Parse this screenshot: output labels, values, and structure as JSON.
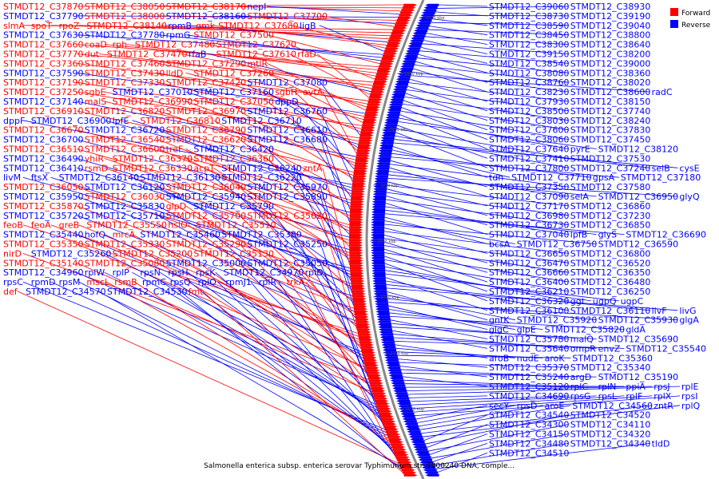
{
  "caption": "Salmonella enterica subsp. enterica serovar Typhimurium str. T000240 DNA, comple...",
  "legend": {
    "forward": {
      "label": "Forward",
      "color": "#ff0000"
    },
    "reverse": {
      "label": "Reverse",
      "color": "#0000ff"
    }
  },
  "ticks": [
    "4000 kbp",
    "3950 kbp",
    "3900 kbp",
    "3850 kbp",
    "3800 kbp",
    "3750 kbp",
    "3700 kbp",
    "3650 kbp",
    "3600 kbp"
  ],
  "colors": {
    "forward": "#ff0000",
    "reverse": "#0000ff",
    "backbone": "#888888"
  },
  "left_labels": [
    [
      "STMDT12_C37870",
      "f"
    ],
    [
      "STMDT12_C38050",
      "f"
    ],
    [
      "STMDT12_C38170",
      "f"
    ],
    [
      "nepI",
      "r"
    ],
    [
      "STMDT12_C37790",
      "r"
    ],
    [
      "STMDT12_C38000",
      "f"
    ],
    [
      "STMDT12_C38160",
      "r"
    ],
    [
      "STMDT12_C37700",
      "f"
    ],
    [
      "slmA",
      "f"
    ],
    [
      "spoT",
      "f"
    ],
    [
      "rpoZ",
      "f"
    ],
    [
      "STMDT12_C38140",
      "f"
    ],
    [
      "rpmB",
      "r"
    ],
    [
      "gmk",
      "f"
    ],
    [
      "STMDT12_C37680",
      "f"
    ],
    [
      "ligB",
      "r"
    ],
    [
      "STMDT12_C37630",
      "r"
    ],
    [
      "STMDT12_C37780",
      "r"
    ],
    [
      "rpmG",
      "r"
    ],
    [
      "STMDT12_C37500",
      "f"
    ],
    [
      "STMDT12_C37660",
      "f"
    ],
    [
      "coaD",
      "f"
    ],
    [
      "rph",
      "f"
    ],
    [
      "STMDT12_C37480",
      "f"
    ],
    [
      "STMDT12_C37620",
      "f"
    ],
    [
      "STMDT12_C37770",
      "f"
    ],
    [
      "dut",
      "f"
    ],
    [
      "STMDT12_C37470",
      "f"
    ],
    [
      "rfaB",
      "r"
    ],
    [
      "STMDT12_C37610",
      "f"
    ],
    [
      "rfaD",
      "f"
    ],
    [
      "STMDT12_C37360",
      "f"
    ],
    [
      "STMDT12_C37460",
      "f"
    ],
    [
      "STMDT12_C37290",
      "f"
    ],
    [
      "mtlR",
      "f"
    ],
    [
      "STMDT12_C37590",
      "r"
    ],
    [
      "STMDT12_C37430",
      "f"
    ],
    [
      "lldD",
      "f"
    ],
    [
      "STMDT12_C37260",
      "f"
    ],
    [
      "STMDT12_C37190",
      "f"
    ],
    [
      "STMDT12_C37330",
      "f"
    ],
    [
      "STMDT12_C37420",
      "f"
    ],
    [
      "STMDT12_C37080",
      "r"
    ],
    [
      "STMDT12_C37250",
      "f"
    ],
    [
      "sgbE",
      "f"
    ],
    [
      "STMDT12_C37010",
      "r"
    ],
    [
      "STMDT12_C37160",
      "r"
    ],
    [
      "sgbH",
      "f"
    ],
    [
      "avtA",
      "f"
    ],
    [
      "STMDT12_C37140",
      "r"
    ],
    [
      "malS",
      "f"
    ],
    [
      "STMDT12_C36990",
      "f"
    ],
    [
      "STMDT12_C37050",
      "f"
    ],
    [
      "dppD",
      "r"
    ],
    [
      "STMDT12_C36910",
      "f"
    ],
    [
      "STMDT12_C36820",
      "f"
    ],
    [
      "STMDT12_C36970",
      "f"
    ],
    [
      "STMDT12_C36760",
      "r"
    ],
    [
      "dppF",
      "r"
    ],
    [
      "STMDT12_C36900",
      "r"
    ],
    [
      "lpfE",
      "r"
    ],
    [
      "STMDT12_C36810",
      "f"
    ],
    [
      "STMDT12_C36710",
      "r"
    ],
    [
      "STMDT12_C36670",
      "f"
    ],
    [
      "STMDT12_C36720",
      "r"
    ],
    [
      "STMDT12_C36790",
      "f"
    ],
    [
      "STMDT12_C36610",
      "r"
    ],
    [
      "STMDT12_C36700",
      "r"
    ],
    [
      "STMDT12_C36540",
      "f"
    ],
    [
      "STMDT12_C36620",
      "f"
    ],
    [
      "STMDT12_C36680",
      "r"
    ],
    [
      "STMDT12_C36510",
      "f"
    ],
    [
      "STMDT12_C36600",
      "f"
    ],
    [
      "treF",
      "f"
    ],
    [
      "STMDT12_C36420",
      "r"
    ],
    [
      "STMDT12_C36490",
      "r"
    ],
    [
      "yhiR",
      "f"
    ],
    [
      "STMDT12_C36370",
      "f"
    ],
    [
      "STMDT12_C36360",
      "f"
    ],
    [
      "STMDT12_C36410",
      "r"
    ],
    [
      "rsmD",
      "f"
    ],
    [
      "STMDT12_C36330",
      "f"
    ],
    [
      "acpT",
      "f"
    ],
    [
      "STMDT12_C36240",
      "r"
    ],
    [
      "zntA",
      "f"
    ],
    [
      "livM",
      "r"
    ],
    [
      "ftsX",
      "r"
    ],
    [
      "STMDT12_C36140",
      "r"
    ],
    [
      "STMDT12_C36130",
      "r"
    ],
    [
      "STMDT12_C36220",
      "r"
    ],
    [
      "STMDT12_C36050",
      "f"
    ],
    [
      "STMDT12_C36120",
      "r"
    ],
    [
      "STMDT12_C36040",
      "f"
    ],
    [
      "STMDT12_C35970",
      "r"
    ],
    [
      "STMDT12_C35950",
      "r"
    ],
    [
      "STMDT12_C36030",
      "f"
    ],
    [
      "STMDT12_C35940",
      "r"
    ],
    [
      "STMDT12_C35890",
      "r"
    ],
    [
      "STMDT12_C35870",
      "f"
    ],
    [
      "STMDT12_C35830",
      "r"
    ],
    [
      "glpD",
      "f"
    ],
    [
      "STMDT12_C35790",
      "r"
    ],
    [
      "STMDT12_C35720",
      "r"
    ],
    [
      "STMDT12_C35710",
      "r"
    ],
    [
      "STMDT12_C35700",
      "f"
    ],
    [
      "STMDT12_C35620",
      "f"
    ],
    [
      "feoB",
      "f"
    ],
    [
      "feoA",
      "f"
    ],
    [
      "greB",
      "f"
    ],
    [
      "STMDT12_C35550",
      "f"
    ],
    [
      "hslO",
      "f"
    ],
    [
      "STMDT12_C35510",
      "f"
    ],
    [
      "STMDT12_C35440",
      "r"
    ],
    [
      "hofQ",
      "r"
    ],
    [
      "mrcA",
      "f"
    ],
    [
      "STMDT12_C35460",
      "r"
    ],
    [
      "STMDT12_C35380",
      "r"
    ],
    [
      "STMDT12_C35350",
      "f"
    ],
    [
      "STMDT12_C35330",
      "f"
    ],
    [
      "STMDT12_C35290",
      "f"
    ],
    [
      "STMDT12_C35250",
      "r"
    ],
    [
      "nirD",
      "f"
    ],
    [
      "STMDT12_C35260",
      "r"
    ],
    [
      "STMDT12_C35200",
      "f"
    ],
    [
      "STMDT12_C35130",
      "f"
    ],
    [
      "STMDT12_C35140",
      "f"
    ],
    [
      "STMDT12_C35080",
      "f"
    ],
    [
      "STMDT12_C35000",
      "r"
    ],
    [
      "STMDT12_C35050",
      "r"
    ],
    [
      "STMDT12_C34960",
      "r"
    ],
    [
      "rplW",
      "r"
    ],
    [
      "rplP",
      "r"
    ],
    [
      "rpsN",
      "r"
    ],
    [
      "rpsH",
      "r"
    ],
    [
      "rpsK",
      "r"
    ],
    [
      "STMDT12_C34970",
      "r"
    ],
    [
      "rplD",
      "r"
    ],
    [
      "rpsC",
      "r"
    ],
    [
      "rpmD",
      "r"
    ],
    [
      "rpsM",
      "r"
    ],
    [
      "mscL",
      "f"
    ],
    [
      "rsmB",
      "f"
    ],
    [
      "rpmC",
      "r"
    ],
    [
      "rpsQ",
      "r"
    ],
    [
      "rplO",
      "r"
    ],
    [
      "rpmJ1",
      "r"
    ],
    [
      "rplR",
      "r"
    ],
    [
      "trkA",
      "f"
    ],
    [
      "def",
      "f"
    ],
    [
      "STMDT12_C34570",
      "r"
    ],
    [
      "STMDT12_C34530",
      "r"
    ],
    [
      "fmt",
      "f"
    ]
  ],
  "right_labels": [
    [
      "STMDT12_C39060",
      "r"
    ],
    [
      "STMDT12_C38930",
      "r"
    ],
    [
      "STMDT12_C38730",
      "r"
    ],
    [
      "STMDT12_C39190",
      "r"
    ],
    [
      "STMDT12_C38590",
      "r"
    ],
    [
      "STMDT12_C39040",
      "r"
    ],
    [
      "STMDT12_C38450",
      "r"
    ],
    [
      "STMDT12_C38800",
      "r"
    ],
    [
      "STMDT12_C38300",
      "r"
    ],
    [
      "STMDT12_C38640",
      "r"
    ],
    [
      "STMDT12_C39150",
      "r"
    ],
    [
      "STMDT12_C38200",
      "r"
    ],
    [
      "STMDT12_C38540",
      "r"
    ],
    [
      "STMDT12_C39000",
      "r"
    ],
    [
      "STMDT12_C38080",
      "r"
    ],
    [
      "STMDT12_C38360",
      "r"
    ],
    [
      "STMDT12_C38760",
      "r"
    ],
    [
      "STMDT12_C38020",
      "r"
    ],
    [
      "STMDT12_C38230",
      "r"
    ],
    [
      "STMDT12_C38600",
      "r"
    ],
    [
      "radC",
      "r"
    ],
    [
      "STMDT12_C37930",
      "r"
    ],
    [
      "STMDT12_C38150",
      "r"
    ],
    [
      "STMDT12_C38500",
      "r"
    ],
    [
      "STMDT12_C37740",
      "r"
    ],
    [
      "STMDT12_C38030",
      "r"
    ],
    [
      "STMDT12_C38240",
      "r"
    ],
    [
      "STMDT12_C37600",
      "r"
    ],
    [
      "STMDT12_C37830",
      "r"
    ],
    [
      "STMDT12_C38060",
      "r"
    ],
    [
      "STMDT12_C37450",
      "r"
    ],
    [
      "STMDT12_C37640",
      "r"
    ],
    [
      "pyrE",
      "r"
    ],
    [
      "STMDT12_C38120",
      "r"
    ],
    [
      "STMDT12_C37410",
      "r"
    ],
    [
      "STMDT12_C37530",
      "r"
    ],
    [
      "STMDT12_C37800",
      "r"
    ],
    [
      "STMDT12_C37240",
      "r"
    ],
    [
      "selB",
      "r"
    ],
    [
      "cysE",
      "r"
    ],
    [
      "tdh",
      "r"
    ],
    [
      "STMDT12_C37710",
      "r"
    ],
    [
      "gpsA",
      "r"
    ],
    [
      "STMDT12_C37180",
      "r"
    ],
    [
      "STMDT12_C37350",
      "r"
    ],
    [
      "STMDT12_C37580",
      "r"
    ],
    [
      "STMDT12_C37090",
      "r"
    ],
    [
      "selA",
      "r"
    ],
    [
      "STMDT12_C36950",
      "r"
    ],
    [
      "glyQ",
      "r"
    ],
    [
      "STMDT12_C37170",
      "r"
    ],
    [
      "STMDT12_C36860",
      "r"
    ],
    [
      "STMDT12_C36980",
      "r"
    ],
    [
      "STMDT12_C37230",
      "r"
    ],
    [
      "STMDT12_C36730",
      "r"
    ],
    [
      "STMDT12_C36850",
      "r"
    ],
    [
      "STMDT12_C37040",
      "r"
    ],
    [
      "lpfB",
      "r"
    ],
    [
      "glyS",
      "r"
    ],
    [
      "STMDT12_C36690",
      "r"
    ],
    [
      "bcsA",
      "r"
    ],
    [
      "STMDT12_C36750",
      "r"
    ],
    [
      "STMDT12_C36590",
      "r"
    ],
    [
      "STMDT12_C36650",
      "r"
    ],
    [
      "STMDT12_C36800",
      "r"
    ],
    [
      "STMDT12_C36470",
      "r"
    ],
    [
      "STMDT12_C36520",
      "r"
    ],
    [
      "STMDT12_C36660",
      "r"
    ],
    [
      "STMDT12_C36350",
      "r"
    ],
    [
      "STMDT12_C36400",
      "r"
    ],
    [
      "STMDT12_C36480",
      "r"
    ],
    [
      "STMDT12_C36210",
      "r"
    ],
    [
      "STMDT12_C36250",
      "r"
    ],
    [
      "STMDT12_C36320",
      "r"
    ],
    [
      "ggt",
      "r"
    ],
    [
      "ugpQ",
      "r"
    ],
    [
      "ugpC",
      "r"
    ],
    [
      "STMDT12_C36100",
      "r"
    ],
    [
      "STMDT12_C36110",
      "r"
    ],
    [
      "livF",
      "r"
    ],
    [
      "livG",
      "r"
    ],
    [
      "gntK",
      "r"
    ],
    [
      "STMDT12_C35920",
      "r"
    ],
    [
      "STMDT12_C35930",
      "r"
    ],
    [
      "glgA",
      "r"
    ],
    [
      "glgC",
      "r"
    ],
    [
      "glpE",
      "r"
    ],
    [
      "STMDT12_C35820",
      "r"
    ],
    [
      "gldA",
      "r"
    ],
    [
      "STMDT12_C35780",
      "r"
    ],
    [
      "malQ",
      "r"
    ],
    [
      "STMDT12_C35690",
      "r"
    ],
    [
      "STMDT12_C35640",
      "r"
    ],
    [
      "ompR",
      "r"
    ],
    [
      "envZ",
      "r"
    ],
    [
      "STMDT12_C35540",
      "r"
    ],
    [
      "aroB",
      "r"
    ],
    [
      "nudE",
      "r"
    ],
    [
      "aroK",
      "r"
    ],
    [
      "STMDT12_C35360",
      "r"
    ],
    [
      "STMDT12_C35370",
      "r"
    ],
    [
      "STMDT12_C35340",
      "r"
    ],
    [
      "STMDT12_C35240",
      "r"
    ],
    [
      "argD",
      "r"
    ],
    [
      "STMDT12_C35190",
      "r"
    ],
    [
      "STMDT12_C35120",
      "r"
    ],
    [
      "rplC",
      "r"
    ],
    [
      "rplN",
      "r"
    ],
    [
      "ppiA",
      "r"
    ],
    [
      "rpsJ",
      "r"
    ],
    [
      "rplE",
      "r"
    ],
    [
      "STMDT12_C34690",
      "r"
    ],
    [
      "rpsG",
      "r"
    ],
    [
      "rpsL",
      "r"
    ],
    [
      "rplF",
      "r"
    ],
    [
      "rplX",
      "r"
    ],
    [
      "rpsI",
      "r"
    ],
    [
      "secY",
      "r"
    ],
    [
      "rpsD",
      "r"
    ],
    [
      "aroE",
      "r"
    ],
    [
      "STMDT12_C34560",
      "r"
    ],
    [
      "zntR",
      "r"
    ],
    [
      "rplQ",
      "r"
    ],
    [
      "STMDT12_C34540",
      "r"
    ],
    [
      "STMDT12_C34520",
      "r"
    ],
    [
      "STMDT12_C34300",
      "r"
    ],
    [
      "STMDT12_C34110",
      "r"
    ],
    [
      "STMDT12_C34150",
      "r"
    ],
    [
      "STMDT12_C34320",
      "r"
    ],
    [
      "STMDT12_C34480",
      "r"
    ],
    [
      "STMDT12_C34340",
      "r"
    ],
    [
      "tldD",
      "r"
    ],
    [
      "STMDT12_C34510",
      "r"
    ]
  ]
}
